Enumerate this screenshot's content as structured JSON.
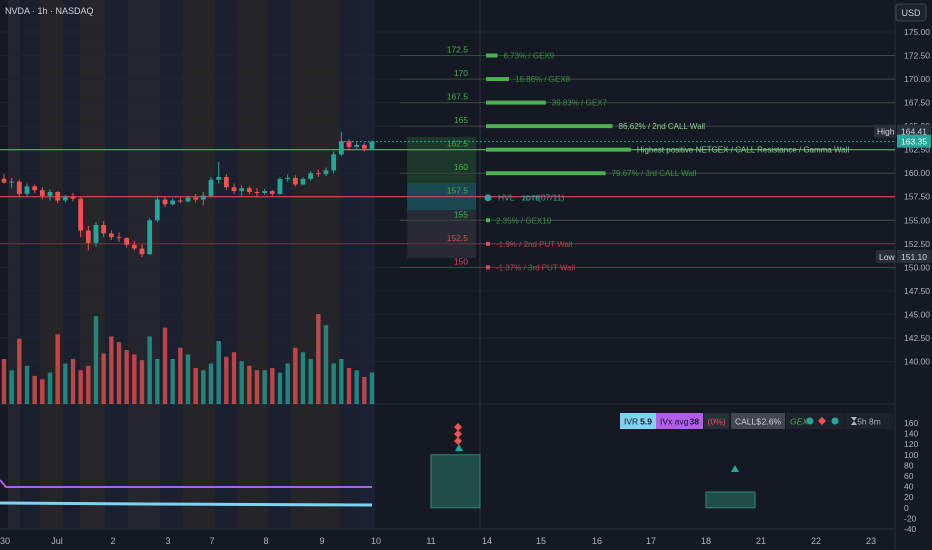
{
  "header": {
    "symbol_label": "NVDA · 1h · NASDAQ",
    "currency_button": "USD"
  },
  "chart_data": {
    "type": "candlestick",
    "symbol": "NVDA",
    "interval": "1h",
    "exchange": "NASDAQ",
    "currency": "USD",
    "price_axis": {
      "min": 137.5,
      "max": 175.0,
      "ticks": [
        140.0,
        142.5,
        145.0,
        147.5,
        150.0,
        152.5,
        155.0,
        157.5,
        160.0,
        162.5,
        165.0,
        167.5,
        170.0,
        172.5,
        175.0
      ]
    },
    "indicator_axis": {
      "min": -40,
      "max": 180,
      "ticks": [
        -40,
        -20,
        0,
        20,
        40,
        60,
        80,
        100,
        120,
        140,
        160
      ]
    },
    "time_axis_labels": [
      "30",
      "Jul",
      "2",
      "3",
      "7",
      "8",
      "9",
      "10",
      "11",
      "14",
      "15",
      "16",
      "17",
      "18",
      "21",
      "22",
      "23"
    ],
    "session_labels": {
      "high": "High",
      "low": "Low"
    },
    "price_labels": {
      "high": "164.41",
      "last": "163.35",
      "low": "151.10"
    },
    "candles": [
      {
        "o": 159.4,
        "h": 159.9,
        "l": 158.9,
        "c": 159.0
      },
      {
        "o": 159.0,
        "h": 159.5,
        "l": 158.4,
        "c": 159.1
      },
      {
        "o": 159.1,
        "h": 159.3,
        "l": 157.4,
        "c": 157.8
      },
      {
        "o": 157.8,
        "h": 158.9,
        "l": 157.5,
        "c": 158.6
      },
      {
        "o": 158.6,
        "h": 158.8,
        "l": 157.9,
        "c": 158.2
      },
      {
        "o": 158.2,
        "h": 158.5,
        "l": 157.2,
        "c": 157.6
      },
      {
        "o": 157.6,
        "h": 158.3,
        "l": 157.1,
        "c": 158.0
      },
      {
        "o": 158.0,
        "h": 158.1,
        "l": 156.8,
        "c": 157.1
      },
      {
        "o": 157.1,
        "h": 157.7,
        "l": 156.9,
        "c": 157.5
      },
      {
        "o": 157.5,
        "h": 157.9,
        "l": 157.0,
        "c": 157.3
      },
      {
        "o": 157.3,
        "h": 157.4,
        "l": 153.2,
        "c": 153.9
      },
      {
        "o": 153.9,
        "h": 154.4,
        "l": 151.8,
        "c": 152.6
      },
      {
        "o": 152.6,
        "h": 154.8,
        "l": 152.2,
        "c": 154.5
      },
      {
        "o": 154.5,
        "h": 154.9,
        "l": 153.2,
        "c": 153.6
      },
      {
        "o": 153.6,
        "h": 153.9,
        "l": 152.9,
        "c": 153.2
      },
      {
        "o": 153.2,
        "h": 153.7,
        "l": 152.7,
        "c": 153.1
      },
      {
        "o": 153.1,
        "h": 153.2,
        "l": 152.1,
        "c": 152.4
      },
      {
        "o": 152.4,
        "h": 152.8,
        "l": 151.8,
        "c": 152.0
      },
      {
        "o": 152.0,
        "h": 152.5,
        "l": 151.1,
        "c": 151.4
      },
      {
        "o": 151.4,
        "h": 155.2,
        "l": 151.3,
        "c": 155.0
      },
      {
        "o": 155.0,
        "h": 157.6,
        "l": 154.8,
        "c": 157.2
      },
      {
        "o": 157.2,
        "h": 157.5,
        "l": 156.4,
        "c": 156.7
      },
      {
        "o": 156.7,
        "h": 157.3,
        "l": 156.6,
        "c": 157.1
      },
      {
        "o": 157.1,
        "h": 157.4,
        "l": 156.8,
        "c": 157.0
      },
      {
        "o": 157.0,
        "h": 157.6,
        "l": 156.9,
        "c": 157.4
      },
      {
        "o": 157.4,
        "h": 157.8,
        "l": 156.9,
        "c": 157.2
      },
      {
        "o": 157.2,
        "h": 158.0,
        "l": 156.6,
        "c": 157.6
      },
      {
        "o": 157.6,
        "h": 159.6,
        "l": 157.5,
        "c": 159.3
      },
      {
        "o": 159.3,
        "h": 161.2,
        "l": 158.9,
        "c": 159.6
      },
      {
        "o": 159.6,
        "h": 159.9,
        "l": 158.2,
        "c": 158.5
      },
      {
        "o": 158.5,
        "h": 158.9,
        "l": 157.8,
        "c": 158.1
      },
      {
        "o": 158.1,
        "h": 158.7,
        "l": 157.6,
        "c": 158.4
      },
      {
        "o": 158.4,
        "h": 158.6,
        "l": 157.8,
        "c": 158.0
      },
      {
        "o": 158.0,
        "h": 158.4,
        "l": 157.4,
        "c": 157.9
      },
      {
        "o": 157.9,
        "h": 158.3,
        "l": 157.7,
        "c": 158.1
      },
      {
        "o": 158.1,
        "h": 158.2,
        "l": 157.6,
        "c": 157.8
      },
      {
        "o": 157.8,
        "h": 159.6,
        "l": 157.7,
        "c": 159.4
      },
      {
        "o": 159.4,
        "h": 159.9,
        "l": 159.1,
        "c": 159.5
      },
      {
        "o": 159.5,
        "h": 159.8,
        "l": 158.6,
        "c": 158.8
      },
      {
        "o": 158.8,
        "h": 159.6,
        "l": 158.7,
        "c": 159.4
      },
      {
        "o": 159.4,
        "h": 160.2,
        "l": 159.2,
        "c": 160.0
      },
      {
        "o": 160.0,
        "h": 160.4,
        "l": 159.6,
        "c": 159.9
      },
      {
        "o": 159.9,
        "h": 160.6,
        "l": 159.7,
        "c": 160.3
      },
      {
        "o": 160.3,
        "h": 162.3,
        "l": 160.0,
        "c": 162.0
      },
      {
        "o": 162.0,
        "h": 164.41,
        "l": 161.8,
        "c": 163.4
      },
      {
        "o": 163.4,
        "h": 163.6,
        "l": 162.4,
        "c": 162.8
      },
      {
        "o": 162.8,
        "h": 163.3,
        "l": 162.5,
        "c": 163.0
      },
      {
        "o": 163.0,
        "h": 163.2,
        "l": 162.3,
        "c": 162.6
      },
      {
        "o": 162.6,
        "h": 163.5,
        "l": 162.5,
        "c": 163.35
      }
    ],
    "volume": [
      40,
      30,
      58,
      34,
      25,
      22,
      28,
      62,
      36,
      40,
      30,
      34,
      78,
      45,
      60,
      55,
      48,
      44,
      39,
      60,
      40,
      68,
      40,
      50,
      44,
      32,
      30,
      36,
      56,
      42,
      46,
      38,
      34,
      30,
      30,
      32,
      28,
      36,
      50,
      46,
      40,
      80,
      70,
      36,
      40,
      32,
      30,
      24,
      28
    ],
    "levels": [
      {
        "price": 172.5,
        "text": "6.73% / GEX9",
        "kind": "gex",
        "len": 0.05
      },
      {
        "price": 170.0,
        "text": "16.86% / GEX8",
        "kind": "gex",
        "len": 0.1
      },
      {
        "price": 167.5,
        "text": "39.83% / GEX7",
        "kind": "gex",
        "len": 0.26
      },
      {
        "price": 165.0,
        "text": "86.62% / 2nd CALL Wall",
        "kind": "call",
        "len": 0.55
      },
      {
        "price": 162.5,
        "text": "Highest positive NETGEX / CALL Resistance / Gamma Wall",
        "kind": "call",
        "len": 0.63
      },
      {
        "price": 160.0,
        "text": "79.67% / 3rd CALL Wall",
        "kind": "call",
        "len": 0.52
      },
      {
        "price": 157.5,
        "text": "HVL",
        "kind": "hvl",
        "len": 0
      },
      {
        "price": 155.0,
        "text": "2.35% / GEX10",
        "kind": "gex",
        "len": 0.0
      },
      {
        "price": 152.5,
        "text": "-1.9% / 2nd PUT Wall",
        "kind": "put",
        "len": 0.0
      },
      {
        "price": 150.0,
        "text": "-1.37% / 3rd PUT Wall",
        "kind": "put",
        "len": 0.0
      }
    ],
    "level_price_labels": [
      "172.5",
      "170",
      "167.5",
      "165",
      "162.5",
      "160",
      "157.5",
      "155",
      "152.5",
      "150"
    ],
    "hvl_dte": "2DTE",
    "hvl_date": "(07/11)",
    "indicator": {
      "badges": [
        {
          "name": "IVR",
          "value": "5.9"
        },
        {
          "name": "IVx avg",
          "value": "38"
        },
        {
          "name": "",
          "value": "(0%)"
        },
        {
          "name": "CALL$",
          "value": "2.6%"
        },
        {
          "name": "GEX",
          "value": ""
        },
        {
          "name": "",
          "value": "5h 8m"
        }
      ],
      "lines": [
        {
          "name": "purple",
          "color": "#b25ee8",
          "value": 38
        },
        {
          "name": "blue",
          "color": "#7fd3f2",
          "value": 5.9
        }
      ],
      "boxes": [
        {
          "from": "11",
          "value": 100
        },
        {
          "from": "18",
          "value": 60
        }
      ]
    },
    "colors": {
      "up": "#26a69a",
      "down": "#ef5350",
      "accent": "#2962ff",
      "gex": "#4caf50",
      "put": "#ef5350"
    }
  }
}
